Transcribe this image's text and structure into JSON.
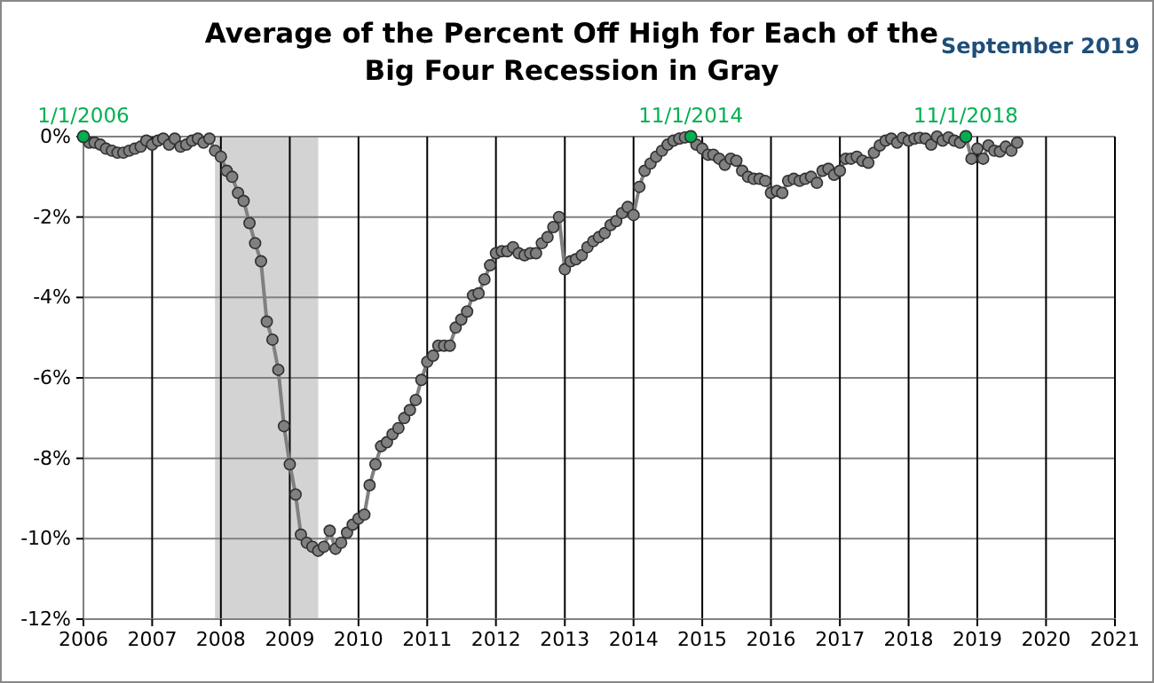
{
  "chart_data": {
    "type": "line",
    "title": "Average of the Percent Off High for Each of the Big Four Recession in Gray",
    "annotations": [
      "September 2019",
      {
        "text": "1/1/2006",
        "x": "2006-01",
        "y": 0
      },
      {
        "text": "11/1/2014",
        "x": "2014-11",
        "y": 0
      },
      {
        "text": "11/1/2018",
        "x": "2018-11",
        "y": 0
      }
    ],
    "x": [
      "2006-01",
      "2006-02",
      "2006-03",
      "2006-04",
      "2006-05",
      "2006-06",
      "2006-07",
      "2006-08",
      "2006-09",
      "2006-10",
      "2006-11",
      "2006-12",
      "2007-01",
      "2007-02",
      "2007-03",
      "2007-04",
      "2007-05",
      "2007-06",
      "2007-07",
      "2007-08",
      "2007-09",
      "2007-10",
      "2007-11",
      "2007-12",
      "2008-01",
      "2008-02",
      "2008-03",
      "2008-04",
      "2008-05",
      "2008-06",
      "2008-07",
      "2008-08",
      "2008-09",
      "2008-10",
      "2008-11",
      "2008-12",
      "2009-01",
      "2009-02",
      "2009-03",
      "2009-04",
      "2009-05",
      "2009-06",
      "2009-07",
      "2009-08",
      "2009-09",
      "2009-10",
      "2009-11",
      "2009-12",
      "2010-01",
      "2010-02",
      "2010-03",
      "2010-04",
      "2010-05",
      "2010-06",
      "2010-07",
      "2010-08",
      "2010-09",
      "2010-10",
      "2010-11",
      "2010-12",
      "2011-01",
      "2011-02",
      "2011-03",
      "2011-04",
      "2011-05",
      "2011-06",
      "2011-07",
      "2011-08",
      "2011-09",
      "2011-10",
      "2011-11",
      "2011-12",
      "2012-01",
      "2012-02",
      "2012-03",
      "2012-04",
      "2012-05",
      "2012-06",
      "2012-07",
      "2012-08",
      "2012-09",
      "2012-10",
      "2012-11",
      "2012-12",
      "2013-01",
      "2013-02",
      "2013-03",
      "2013-04",
      "2013-05",
      "2013-06",
      "2013-07",
      "2013-08",
      "2013-09",
      "2013-10",
      "2013-11",
      "2013-12",
      "2014-01",
      "2014-02",
      "2014-03",
      "2014-04",
      "2014-05",
      "2014-06",
      "2014-07",
      "2014-08",
      "2014-09",
      "2014-10",
      "2014-11",
      "2014-12",
      "2015-01",
      "2015-02",
      "2015-03",
      "2015-04",
      "2015-05",
      "2015-06",
      "2015-07",
      "2015-08",
      "2015-09",
      "2015-10",
      "2015-11",
      "2015-12",
      "2016-01",
      "2016-02",
      "2016-03",
      "2016-04",
      "2016-05",
      "2016-06",
      "2016-07",
      "2016-08",
      "2016-09",
      "2016-10",
      "2016-11",
      "2016-12",
      "2017-01",
      "2017-02",
      "2017-03",
      "2017-04",
      "2017-05",
      "2017-06",
      "2017-07",
      "2017-08",
      "2017-09",
      "2017-10",
      "2017-11",
      "2017-12",
      "2018-01",
      "2018-02",
      "2018-03",
      "2018-04",
      "2018-05",
      "2018-06",
      "2018-07",
      "2018-08",
      "2018-09",
      "2018-10",
      "2018-11",
      "2018-12",
      "2019-01",
      "2019-02",
      "2019-03",
      "2019-04",
      "2019-05",
      "2019-06",
      "2019-07",
      "2019-08"
    ],
    "series": [
      {
        "color": "#808080",
        "values": [
          0,
          -0.15,
          -0.15,
          -0.2,
          -0.3,
          -0.35,
          -0.4,
          -0.4,
          -0.35,
          -0.3,
          -0.25,
          -0.1,
          -0.2,
          -0.1,
          -0.05,
          -0.2,
          -0.05,
          -0.25,
          -0.2,
          -0.1,
          -0.05,
          -0.15,
          -0.05,
          -0.35,
          -0.5,
          -0.85,
          -1.0,
          -1.4,
          -1.6,
          -2.15,
          -2.65,
          -3.1,
          -4.6,
          -5.05,
          -5.8,
          -7.2,
          -8.15,
          -8.9,
          -9.9,
          -10.1,
          -10.2,
          -10.3,
          -10.2,
          -9.8,
          -10.25,
          -10.1,
          -9.85,
          -9.65,
          -9.5,
          -9.4,
          -8.67,
          -8.15,
          -7.7,
          -7.6,
          -7.4,
          -7.25,
          -7.0,
          -6.8,
          -6.55,
          -6.05,
          -5.6,
          -5.45,
          -5.2,
          -5.2,
          -5.2,
          -4.75,
          -4.55,
          -4.35,
          -3.95,
          -3.9,
          -3.55,
          -3.2,
          -2.9,
          -2.85,
          -2.85,
          -2.75,
          -2.9,
          -2.95,
          -2.9,
          -2.9,
          -2.65,
          -2.5,
          -2.25,
          -2.0,
          -3.3,
          -3.1,
          -3.05,
          -2.95,
          -2.75,
          -2.6,
          -2.5,
          -2.4,
          -2.2,
          -2.1,
          -1.9,
          -1.75,
          -1.95,
          -1.25,
          -0.85,
          -0.67,
          -0.5,
          -0.35,
          -0.2,
          -0.1,
          -0.05,
          -0.02,
          0,
          -0.2,
          -0.3,
          -0.45,
          -0.45,
          -0.55,
          -0.7,
          -0.55,
          -0.6,
          -0.85,
          -1.0,
          -1.05,
          -1.05,
          -1.1,
          -1.4,
          -1.35,
          -1.4,
          -1.1,
          -1.05,
          -1.1,
          -1.05,
          -1.0,
          -1.15,
          -0.85,
          -0.8,
          -0.95,
          -0.85,
          -0.55,
          -0.55,
          -0.5,
          -0.6,
          -0.65,
          -0.4,
          -0.22,
          -0.1,
          -0.05,
          -0.15,
          -0.03,
          -0.1,
          -0.05,
          -0.03,
          -0.05,
          -0.2,
          0,
          -0.1,
          -0.02,
          -0.1,
          -0.15,
          0,
          -0.55,
          -0.3,
          -0.55,
          -0.22,
          -0.35,
          -0.37,
          -0.25,
          -0.35,
          -0.15
        ]
      }
    ],
    "bands": [
      {
        "axis": "x",
        "from": "2007-12",
        "to": "2009-06",
        "color": "#d3d3d3"
      }
    ],
    "xlim": [
      "2006",
      "2021"
    ],
    "xticks": [
      "2006",
      "2007",
      "2008",
      "2009",
      "2010",
      "2011",
      "2012",
      "2013",
      "2014",
      "2015",
      "2016",
      "2017",
      "2018",
      "2019",
      "2020",
      "2021"
    ],
    "ylim": [
      -12,
      0
    ],
    "yticks": [
      {
        "value": 0,
        "label": "0%"
      },
      {
        "value": -2,
        "label": "-2%"
      },
      {
        "value": -4,
        "label": "-4%"
      },
      {
        "value": -6,
        "label": "-6%"
      },
      {
        "value": -8,
        "label": "-8%"
      },
      {
        "value": -10,
        "label": "-10%"
      },
      {
        "value": -12,
        "label": "-12%"
      }
    ],
    "grid": true,
    "marker": "circle",
    "line_style": "solid"
  }
}
